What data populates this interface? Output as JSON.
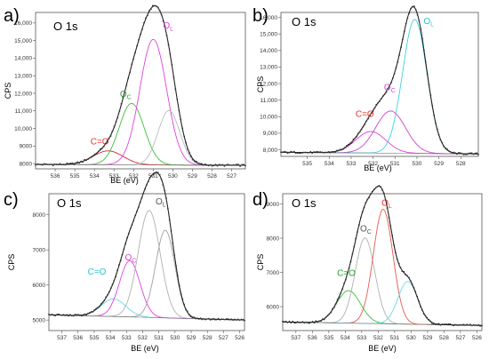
{
  "chart_data": [
    {
      "panel": "a)",
      "title": "O 1s",
      "type": "line",
      "xlabel": "BE (eV)",
      "ylabel": "CPS",
      "xlim": [
        537,
        526.3
      ],
      "ylim": [
        7700,
        16600
      ],
      "xticks": [
        536,
        535,
        534,
        533,
        532,
        531,
        530,
        529,
        528,
        527
      ],
      "yticks": [
        8000,
        9000,
        10000,
        11000,
        12000,
        13000,
        14000,
        15000,
        16000
      ],
      "ytick_labels": [
        "8000",
        "9000",
        "10,000",
        "11,000",
        "12,000",
        "13,000",
        "14,000",
        "15,000",
        "16,000"
      ],
      "baseline": [
        7950,
        7900
      ],
      "components": [
        {
          "label": "C=O",
          "center": 533.3,
          "height": 790,
          "fwhm": 1.8,
          "color": "#d62728",
          "label_color": "#e8312a"
        },
        {
          "label": "Oc",
          "center": 532.1,
          "height": 3500,
          "fwhm": 1.5,
          "color": "#3cbf3c",
          "label_color": "#2ca02c"
        },
        {
          "label": "OL",
          "center": 531.0,
          "height": 7150,
          "fwhm": 1.6,
          "color": "#e040e0",
          "label_color": "#d63fd6"
        },
        {
          "label": "",
          "center": 530.2,
          "height": 3100,
          "fwhm": 1.3,
          "color": "#bbbbbb",
          "label_color": "#bbbbbb"
        }
      ],
      "peak_labels": [
        {
          "text": "C=O",
          "sub": "",
          "x": 534.2,
          "y": 9100
        },
        {
          "text": "O",
          "sub": "C",
          "x": 532.7,
          "y": 11800
        },
        {
          "text": "O",
          "sub": "L",
          "x": 530.5,
          "y": 15700
        }
      ]
    },
    {
      "panel": "b)",
      "title": "O 1s",
      "type": "line",
      "xlabel": "BE (eV)",
      "ylabel": "CPS",
      "xlim": [
        536.2,
        527.2
      ],
      "ylim": [
        7600,
        16300
      ],
      "xticks": [
        535,
        534,
        533,
        532,
        531,
        530,
        529,
        528
      ],
      "yticks": [
        8000,
        9000,
        10000,
        11000,
        12000,
        13000,
        14000,
        15000,
        16000
      ],
      "ytick_labels": [
        "8,000",
        "9,000",
        "10,000",
        "11,000",
        "12,000",
        "13,000",
        "14,000",
        "15,000",
        "16,000"
      ],
      "baseline": [
        7850,
        7750
      ],
      "components": [
        {
          "label": "C=O",
          "center": 532.1,
          "height": 1300,
          "fwhm": 1.6,
          "color": "#e040e0",
          "label_color": "#e8312a"
        },
        {
          "label": "Oc",
          "center": 531.2,
          "height": 2550,
          "fwhm": 1.6,
          "color": "#d040d0",
          "label_color": "#d63fd6"
        },
        {
          "label": "OL",
          "center": 530.1,
          "height": 8100,
          "fwhm": 1.3,
          "color": "#3fd0e0",
          "label_color": "#27c2d8"
        }
      ],
      "peak_labels": [
        {
          "text": "C=O",
          "sub": "",
          "x": 532.8,
          "y": 10000
        },
        {
          "text": "O",
          "sub": "C",
          "x": 531.5,
          "y": 11600
        },
        {
          "text": "O",
          "sub": "L",
          "x": 529.7,
          "y": 15600
        }
      ]
    },
    {
      "panel": "c)",
      "title": "O 1s",
      "type": "line",
      "xlabel": "BE (eV)",
      "ylabel": "CPS",
      "xlim": [
        537.8,
        525.7
      ],
      "ylim": [
        4700,
        8600
      ],
      "xticks": [
        537,
        536,
        535,
        534,
        533,
        532,
        531,
        530,
        529,
        528,
        527,
        526
      ],
      "yticks": [
        5000,
        6000,
        7000,
        8000
      ],
      "ytick_labels": [
        "5000",
        "6000",
        "7000",
        "8000"
      ],
      "baseline": [
        5150,
        5000
      ],
      "components": [
        {
          "label": "C=O",
          "center": 533.8,
          "height": 500,
          "fwhm": 1.8,
          "color": "#6ad6ee",
          "label_color": "#27c2d8"
        },
        {
          "label": "Oc",
          "center": 532.8,
          "height": 1600,
          "fwhm": 1.5,
          "color": "#e040e0",
          "label_color": "#d63fd6"
        },
        {
          "label": "OL",
          "center": 531.6,
          "height": 3050,
          "fwhm": 1.6,
          "color": "#b0b0b0",
          "label_color": "#555555"
        },
        {
          "label": "",
          "center": 530.6,
          "height": 2500,
          "fwhm": 1.4,
          "color": "#a0a0a0",
          "label_color": "#a0a0a0"
        }
      ],
      "peak_labels": [
        {
          "text": "C=O",
          "sub": "",
          "x": 535.4,
          "y": 6300
        },
        {
          "text": "O",
          "sub": "C",
          "x": 533.1,
          "y": 6700
        },
        {
          "text": "O",
          "sub": "L",
          "x": 531.2,
          "y": 8300
        }
      ]
    },
    {
      "panel": "d)",
      "title": "O 1s",
      "type": "line",
      "xlabel": "BE (eV)",
      "ylabel": "CPS",
      "xlim": [
        537.8,
        525.7
      ],
      "ylim": [
        5300,
        9300
      ],
      "xticks": [
        537,
        536,
        535,
        534,
        533,
        532,
        531,
        530,
        529,
        528,
        527,
        526
      ],
      "yticks": [
        6000,
        7000,
        8000,
        9000
      ],
      "ytick_labels": [
        "6000",
        "7000",
        "8000",
        "9000"
      ],
      "baseline": [
        5550,
        5450
      ],
      "components": [
        {
          "label": "C=O",
          "center": 533.8,
          "height": 950,
          "fwhm": 1.7,
          "color": "#3cbf3c",
          "label_color": "#2ca02c"
        },
        {
          "label": "Oc",
          "center": 532.8,
          "height": 2500,
          "fwhm": 1.4,
          "color": "#b0b0b0",
          "label_color": "#555555"
        },
        {
          "label": "OL",
          "center": 531.7,
          "height": 3350,
          "fwhm": 1.4,
          "color": "#e85a4f",
          "label_color": "#e8312a"
        },
        {
          "label": "",
          "center": 530.2,
          "height": 1250,
          "fwhm": 1.4,
          "color": "#6ad6ee",
          "label_color": "#6ad6ee"
        }
      ],
      "peak_labels": [
        {
          "text": "C=O",
          "sub": "",
          "x": 534.5,
          "y": 6900
        },
        {
          "text": "O",
          "sub": "C",
          "x": 533.1,
          "y": 8200
        },
        {
          "text": "O",
          "sub": "L",
          "x": 531.8,
          "y": 8950
        }
      ]
    }
  ]
}
